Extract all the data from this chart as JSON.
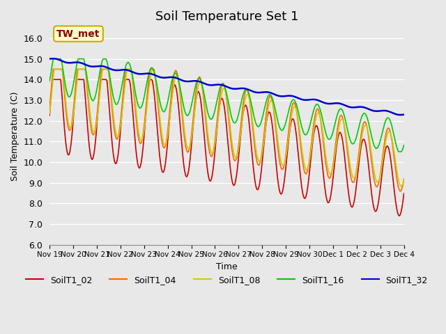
{
  "title": "Soil Temperature Set 1",
  "xlabel": "Time",
  "ylabel": "Soil Temperature (C)",
  "ylim": [
    6.0,
    16.5
  ],
  "yticks": [
    6.0,
    7.0,
    8.0,
    9.0,
    10.0,
    11.0,
    12.0,
    13.0,
    14.0,
    15.0,
    16.0
  ],
  "bg_color": "#e8e8e8",
  "plot_bg_color": "#e8e8e8",
  "grid_color": "white",
  "annotation_text": "TW_met",
  "annotation_color": "#8b0000",
  "annotation_bg": "#ffffcc",
  "annotation_border": "#ccaa00",
  "series_colors": {
    "SoilT1_02": "#cc0000",
    "SoilT1_04": "#ff6600",
    "SoilT1_08": "#cccc00",
    "SoilT1_16": "#00cc00",
    "SoilT1_32": "#0000cc"
  },
  "x_tick_positions": [
    0,
    1,
    2,
    3,
    4,
    5,
    6,
    7,
    8,
    9,
    10,
    11,
    12,
    13,
    14,
    15
  ],
  "x_tick_labels": [
    "Nov 19",
    "Nov 20",
    "Nov 21",
    "Nov 22",
    "Nov 23",
    "Nov 24",
    "Nov 25",
    "Nov 26",
    "Nov 27",
    "Nov 28",
    "Nov 29",
    "Nov 30",
    "Dec 1",
    "Dec 2",
    "Dec 3",
    "Dec 4"
  ],
  "num_points": 384
}
